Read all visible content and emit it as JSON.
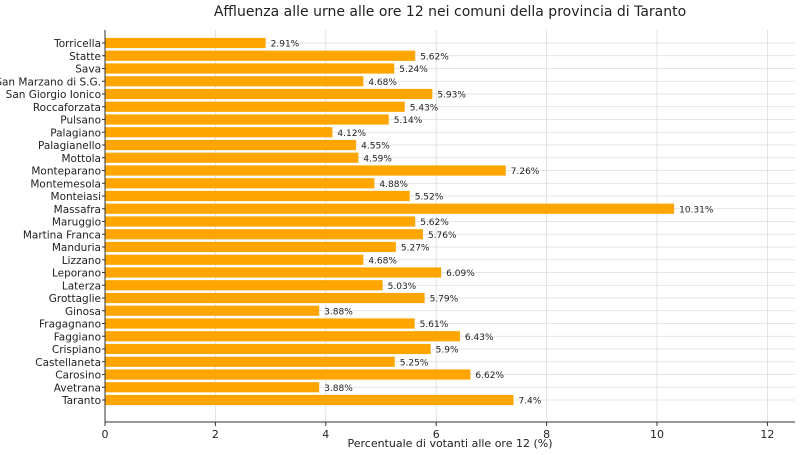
{
  "chart_data": {
    "type": "bar",
    "orientation": "horizontal",
    "title": "Affluenza alle urne alle ore 12 nei comuni della provincia di Taranto",
    "xlabel": "Percentuale di votanti alle ore 12 (%)",
    "ylabel": "",
    "xlim": [
      0,
      12.5
    ],
    "xticks": [
      0,
      2,
      4,
      6,
      8,
      10,
      12
    ],
    "grid": true,
    "bar_color": "#FFA500",
    "categories": [
      "Torricella",
      "Statte",
      "Sava",
      "San Marzano di S.G.",
      "San Giorgio Ionico",
      "Roccaforzata",
      "Pulsano",
      "Palagiano",
      "Palagianello",
      "Mottola",
      "Monteparano",
      "Montemesola",
      "Monteiasi",
      "Massafra",
      "Maruggio",
      "Martina Franca",
      "Manduria",
      "Lizzano",
      "Leporano",
      "Laterza",
      "Grottaglie",
      "Ginosa",
      "Fragagnano",
      "Faggiano",
      "Crispiano",
      "Castellaneta",
      "Carosino",
      "Avetrana",
      "Taranto"
    ],
    "values": [
      2.91,
      5.62,
      5.24,
      4.68,
      5.93,
      5.43,
      5.14,
      4.12,
      4.55,
      4.59,
      7.26,
      4.88,
      5.52,
      10.31,
      5.62,
      5.76,
      5.27,
      4.68,
      6.09,
      5.03,
      5.79,
      3.88,
      5.61,
      6.43,
      5.9,
      5.25,
      6.62,
      3.88,
      7.4
    ],
    "value_labels": [
      "2.91%",
      "5.62%",
      "5.24%",
      "4.68%",
      "5.93%",
      "5.43%",
      "5.14%",
      "4.12%",
      "4.55%",
      "4.59%",
      "7.26%",
      "4.88%",
      "5.52%",
      "10.31%",
      "5.62%",
      "5.76%",
      "5.27%",
      "4.68%",
      "6.09%",
      "5.03%",
      "5.79%",
      "3.88%",
      "5.61%",
      "6.43%",
      "5.9%",
      "5.25%",
      "6.62%",
      "3.88%",
      "7.4%"
    ]
  }
}
